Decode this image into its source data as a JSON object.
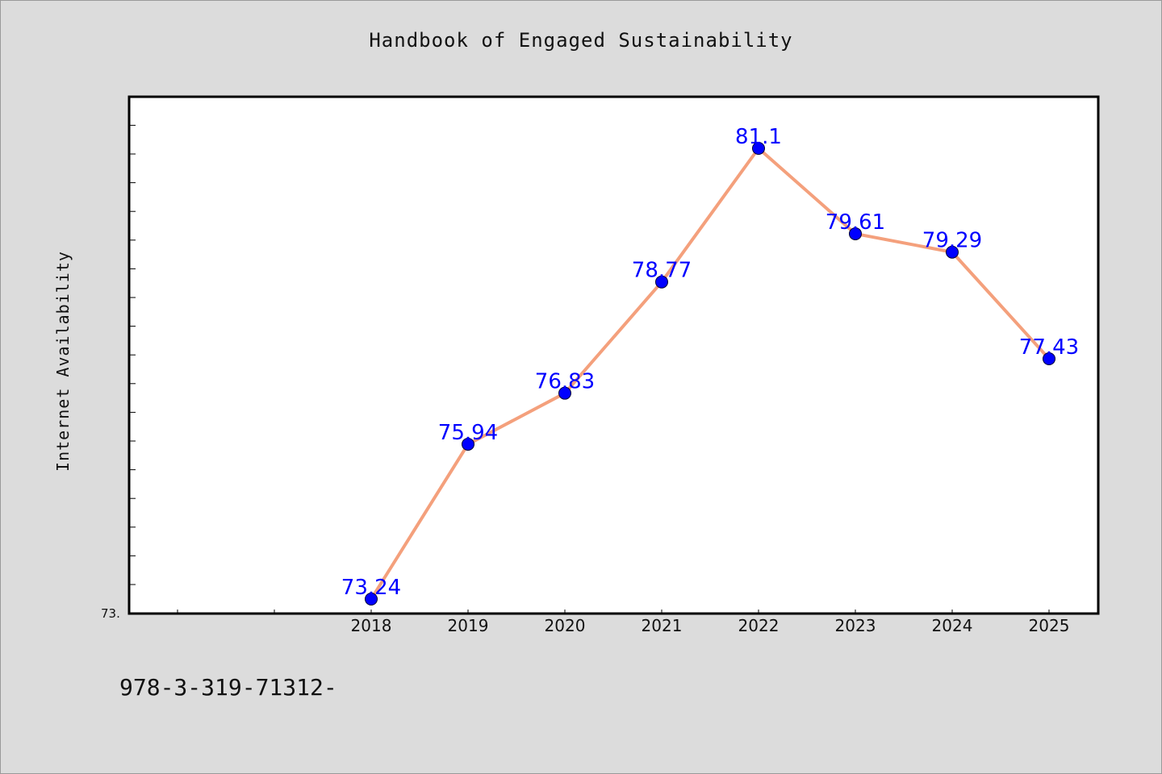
{
  "title": "Handbook of Engaged Sustainability",
  "footer": "978-3-319-71312-",
  "colors": {
    "background": "#dcdcdc",
    "plot_background": "#ffffff",
    "line": "#f4a07c",
    "marker": "#0000ff",
    "label": "#0000ff"
  },
  "chart_data": {
    "type": "line",
    "title": "Handbook of Engaged Sustainability",
    "xlabel": "",
    "ylabel": "Internet Availability",
    "categories": [
      "2018",
      "2019",
      "2020",
      "2021",
      "2022",
      "2023",
      "2024",
      "2025"
    ],
    "series": [
      {
        "values": [
          73.24,
          75.94,
          76.83,
          78.77,
          81.1,
          79.61,
          79.29,
          77.43
        ],
        "data_labels": [
          "73.24",
          "75.94",
          "76.83",
          "78.77",
          "81.1",
          "79.61",
          "79.29",
          "77.43"
        ]
      }
    ],
    "ylim": [
      73.0,
      82.0
    ],
    "y_min_tick_label": "73.",
    "grid": false,
    "legend": "none"
  }
}
